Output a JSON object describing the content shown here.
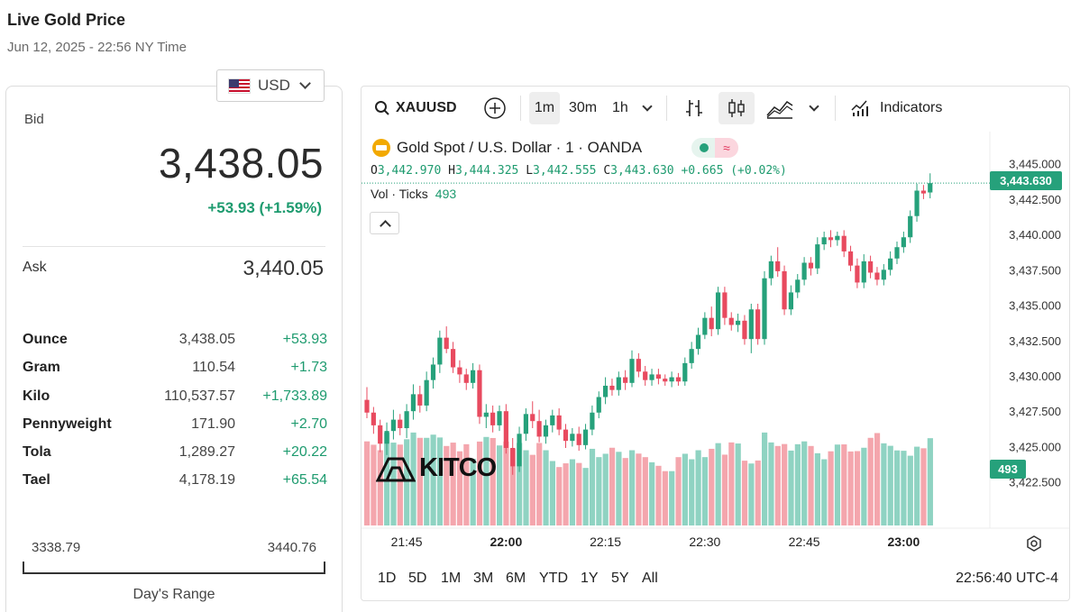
{
  "header": {
    "title": "Live Gold Price",
    "subtitle": "Jun 12, 2025 - 22:56 NY Time"
  },
  "currency": {
    "selected": "USD",
    "flag_icon": "us-flag-icon"
  },
  "quote": {
    "bid_label": "Bid",
    "bid": "3,438.05",
    "bid_change": "+53.93 (+1.59%)",
    "ask_label": "Ask",
    "ask": "3,440.05"
  },
  "weights": [
    {
      "unit": "Ounce",
      "price": "3,438.05",
      "change": "+53.93"
    },
    {
      "unit": "Gram",
      "price": "110.54",
      "change": "+1.73"
    },
    {
      "unit": "Kilo",
      "price": "110,537.57",
      "change": "+1,733.89"
    },
    {
      "unit": "Pennyweight",
      "price": "171.90",
      "change": "+2.70"
    },
    {
      "unit": "Tola",
      "price": "1,289.27",
      "change": "+20.22"
    },
    {
      "unit": "Tael",
      "price": "4,178.19",
      "change": "+65.54"
    }
  ],
  "day_range": {
    "low": "3338.79",
    "high": "3440.76",
    "label": "Day's Range"
  },
  "toolbar": {
    "symbol": "XAUUSD",
    "intervals": [
      "1m",
      "30m",
      "1h"
    ],
    "active_interval": "1m",
    "indicators_label": "Indicators"
  },
  "legend": {
    "title": "Gold Spot / U.S. Dollar · 1 · OANDA",
    "o_label": "O",
    "o": "3,442.970",
    "h_label": "H",
    "h": "3,444.325",
    "l_label": "L",
    "l": "3,442.555",
    "c_label": "C",
    "c": "3,443.630",
    "change": "+0.665 (+0.02%)",
    "vol_label": "Vol · Ticks",
    "vol": "493",
    "logo_text": "KITCO"
  },
  "range_buttons": [
    "1D",
    "5D",
    "1M",
    "3M",
    "6M",
    "YTD",
    "1Y",
    "5Y",
    "All"
  ],
  "clock": "22:56:40 UTC-4",
  "colors": {
    "up": "#26a17b",
    "down": "#e84a5f",
    "vol_up": "#8fd3c2",
    "vol_down": "#f4a6ad"
  },
  "chart_data": {
    "type": "candlestick",
    "interval": "1m",
    "x_tick_labels": [
      "21:45",
      "22:00",
      "22:15",
      "22:30",
      "22:45",
      "23:00"
    ],
    "y_tick_labels": [
      "3,445.000",
      "3,442.500",
      "3,440.000",
      "3,437.500",
      "3,435.000",
      "3,432.500",
      "3,430.000",
      "3,427.500",
      "3,425.000",
      "3,422.500"
    ],
    "ylim": [
      3420.5,
      3446.0
    ],
    "last_price_label": "3,443.630",
    "last_volume_label": "493",
    "x_ticks_time": [
      21.75,
      22.0,
      22.25,
      22.5,
      22.75,
      23.0
    ],
    "start_time": "21:39",
    "minute_step": 1,
    "candles": [
      [
        3428.3,
        3429.2,
        3427.0,
        3427.4
      ],
      [
        3427.4,
        3427.8,
        3425.9,
        3426.5
      ],
      [
        3426.5,
        3426.9,
        3424.6,
        3425.2
      ],
      [
        3425.2,
        3426.7,
        3424.4,
        3426.1
      ],
      [
        3426.1,
        3427.6,
        3425.5,
        3426.9
      ],
      [
        3426.9,
        3427.3,
        3425.8,
        3426.3
      ],
      [
        3426.3,
        3428.0,
        3425.6,
        3427.5
      ],
      [
        3427.5,
        3429.4,
        3426.9,
        3428.7
      ],
      [
        3428.7,
        3429.3,
        3427.4,
        3427.9
      ],
      [
        3427.9,
        3430.3,
        3427.5,
        3429.7
      ],
      [
        3429.7,
        3431.3,
        3429.1,
        3430.8
      ],
      [
        3430.8,
        3433.2,
        3430.2,
        3432.7
      ],
      [
        3432.7,
        3433.5,
        3431.6,
        3431.9
      ],
      [
        3431.9,
        3432.4,
        3430.2,
        3430.6
      ],
      [
        3430.6,
        3431.1,
        3429.5,
        3430.1
      ],
      [
        3430.1,
        3430.5,
        3429.0,
        3429.5
      ],
      [
        3429.5,
        3430.9,
        3429.1,
        3430.4
      ],
      [
        3430.4,
        3430.8,
        3426.6,
        3427.1
      ],
      [
        3427.1,
        3428.0,
        3426.3,
        3427.4
      ],
      [
        3427.4,
        3427.9,
        3426.0,
        3426.5
      ],
      [
        3426.5,
        3427.9,
        3426.1,
        3427.5
      ],
      [
        3427.5,
        3428.0,
        3424.5,
        3424.9
      ],
      [
        3424.9,
        3425.6,
        3423.0,
        3423.6
      ],
      [
        3423.6,
        3426.4,
        3423.2,
        3425.9
      ],
      [
        3425.9,
        3427.7,
        3425.4,
        3427.3
      ],
      [
        3427.3,
        3428.2,
        3426.3,
        3426.8
      ],
      [
        3426.8,
        3427.6,
        3425.3,
        3425.7
      ],
      [
        3425.7,
        3426.9,
        3425.2,
        3426.5
      ],
      [
        3426.5,
        3427.6,
        3426.0,
        3427.2
      ],
      [
        3427.2,
        3427.7,
        3425.8,
        3426.2
      ],
      [
        3426.2,
        3426.6,
        3424.9,
        3425.4
      ],
      [
        3425.4,
        3426.3,
        3425.0,
        3425.9
      ],
      [
        3425.9,
        3426.4,
        3424.7,
        3425.1
      ],
      [
        3425.1,
        3426.6,
        3424.8,
        3426.2
      ],
      [
        3426.2,
        3427.9,
        3425.8,
        3427.4
      ],
      [
        3427.4,
        3428.9,
        3427.0,
        3428.5
      ],
      [
        3428.5,
        3429.9,
        3428.0,
        3429.3
      ],
      [
        3429.3,
        3429.8,
        3428.6,
        3429.0
      ],
      [
        3429.0,
        3430.3,
        3428.6,
        3429.9
      ],
      [
        3429.9,
        3430.4,
        3429.0,
        3429.5
      ],
      [
        3429.5,
        3431.8,
        3429.2,
        3431.2
      ],
      [
        3431.2,
        3431.6,
        3429.9,
        3430.3
      ],
      [
        3430.3,
        3430.7,
        3429.3,
        3429.7
      ],
      [
        3429.7,
        3430.5,
        3429.3,
        3430.1
      ],
      [
        3430.1,
        3430.5,
        3429.4,
        3429.8
      ],
      [
        3429.8,
        3430.1,
        3429.3,
        3429.6
      ],
      [
        3429.6,
        3430.3,
        3429.2,
        3429.9
      ],
      [
        3429.9,
        3430.2,
        3429.3,
        3429.6
      ],
      [
        3429.6,
        3431.3,
        3429.3,
        3430.9
      ],
      [
        3430.9,
        3432.4,
        3430.5,
        3431.9
      ],
      [
        3431.9,
        3433.4,
        3431.5,
        3432.9
      ],
      [
        3432.9,
        3434.5,
        3432.6,
        3434.1
      ],
      [
        3434.1,
        3434.9,
        3432.8,
        3433.3
      ],
      [
        3433.3,
        3436.3,
        3432.9,
        3435.9
      ],
      [
        3435.9,
        3436.3,
        3433.6,
        3434.1
      ],
      [
        3434.1,
        3434.5,
        3433.2,
        3433.6
      ],
      [
        3433.6,
        3434.4,
        3433.1,
        3433.9
      ],
      [
        3433.9,
        3434.3,
        3432.2,
        3432.6
      ],
      [
        3432.6,
        3435.1,
        3431.6,
        3434.7
      ],
      [
        3434.7,
        3435.1,
        3432.2,
        3432.6
      ],
      [
        3432.6,
        3437.4,
        3432.2,
        3436.9
      ],
      [
        3436.9,
        3438.5,
        3436.4,
        3438.1
      ],
      [
        3438.1,
        3439.1,
        3437.0,
        3437.4
      ],
      [
        3437.4,
        3437.8,
        3434.3,
        3434.7
      ],
      [
        3434.7,
        3436.4,
        3434.3,
        3435.9
      ],
      [
        3435.9,
        3437.2,
        3435.5,
        3436.8
      ],
      [
        3436.8,
        3438.4,
        3436.4,
        3438.0
      ],
      [
        3438.0,
        3438.4,
        3437.1,
        3437.6
      ],
      [
        3437.6,
        3439.8,
        3437.2,
        3439.3
      ],
      [
        3439.3,
        3440.2,
        3438.9,
        3439.8
      ],
      [
        3439.8,
        3440.3,
        3439.1,
        3439.6
      ],
      [
        3439.6,
        3440.2,
        3439.2,
        3439.9
      ],
      [
        3439.9,
        3440.3,
        3438.4,
        3438.8
      ],
      [
        3438.8,
        3439.2,
        3437.4,
        3437.8
      ],
      [
        3437.8,
        3438.3,
        3436.2,
        3436.6
      ],
      [
        3436.6,
        3438.6,
        3436.2,
        3438.1
      ],
      [
        3438.1,
        3438.5,
        3436.9,
        3437.3
      ],
      [
        3437.3,
        3437.7,
        3436.4,
        3436.8
      ],
      [
        3436.8,
        3437.9,
        3436.4,
        3437.5
      ],
      [
        3437.5,
        3438.8,
        3437.1,
        3438.3
      ],
      [
        3438.3,
        3439.5,
        3437.9,
        3439.1
      ],
      [
        3439.1,
        3440.2,
        3438.7,
        3439.8
      ],
      [
        3439.8,
        3441.7,
        3439.4,
        3441.3
      ],
      [
        3441.3,
        3443.6,
        3440.9,
        3443.1
      ],
      [
        3443.1,
        3443.5,
        3442.5,
        3442.9
      ],
      [
        3442.97,
        3444.325,
        3442.555,
        3443.63
      ]
    ],
    "volumes": [
      475,
      456,
      425,
      525,
      468,
      457,
      487,
      525,
      495,
      495,
      513,
      497,
      449,
      468,
      419,
      459,
      377,
      474,
      500,
      494,
      452,
      474,
      434,
      466,
      425,
      399,
      466,
      425,
      364,
      330,
      351,
      374,
      353,
      325,
      433,
      386,
      405,
      439,
      416,
      381,
      425,
      406,
      386,
      357,
      337,
      307,
      307,
      386,
      405,
      374,
      425,
      386,
      433,
      465,
      400,
      469,
      463,
      366,
      350,
      367,
      525,
      469,
      449,
      460,
      423,
      459,
      475,
      449,
      408,
      374,
      419,
      457,
      458,
      418,
      420,
      439,
      495,
      522,
      464,
      450,
      424,
      422,
      394,
      445,
      436,
      493
    ]
  }
}
